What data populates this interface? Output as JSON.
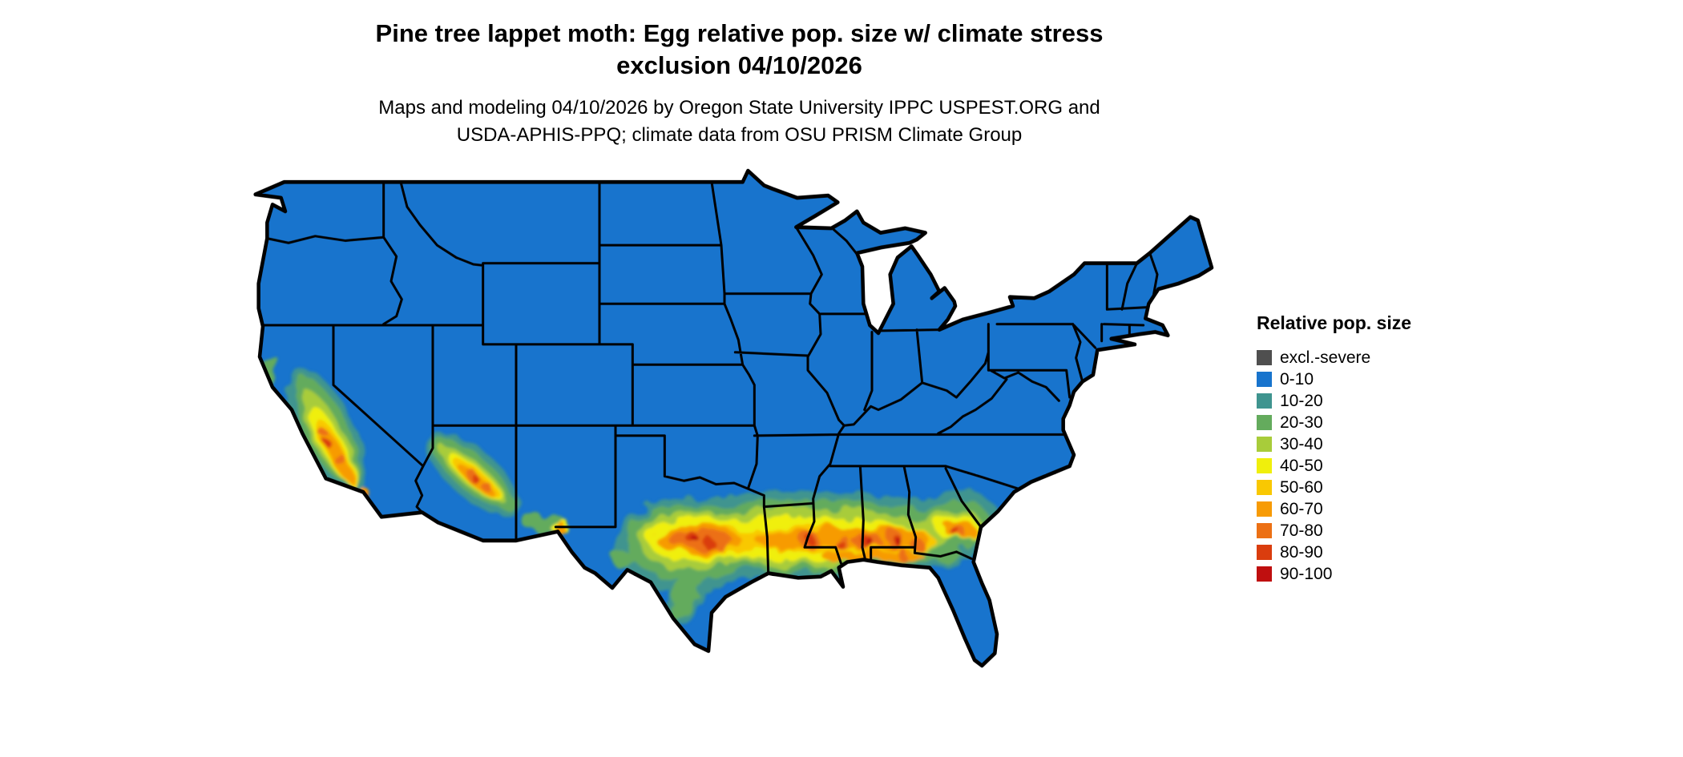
{
  "title": {
    "line1": "Pine tree lappet moth: Egg relative pop. size w/ climate stress",
    "line2": "exclusion 04/10/2026"
  },
  "subtitle": {
    "line1": "Maps and modeling 04/10/2026 by Oregon State University IPPC USPEST.ORG and",
    "line2": "USDA-APHIS-PPQ; climate data from OSU PRISM Climate Group"
  },
  "legend": {
    "title": "Relative pop. size",
    "items": [
      {
        "label": "excl.-severe",
        "color": "#4f4f4f"
      },
      {
        "label": "0-10",
        "color": "#1874cd"
      },
      {
        "label": "10-20",
        "color": "#3f948f"
      },
      {
        "label": "20-30",
        "color": "#64ab5d"
      },
      {
        "label": "30-40",
        "color": "#a8cc3a"
      },
      {
        "label": "40-50",
        "color": "#f0ef0c"
      },
      {
        "label": "50-60",
        "color": "#f9c802"
      },
      {
        "label": "60-70",
        "color": "#f79b05"
      },
      {
        "label": "70-80",
        "color": "#ec7014"
      },
      {
        "label": "80-90",
        "color": "#da3d0e"
      },
      {
        "label": "90-100",
        "color": "#bf0f0f"
      }
    ]
  },
  "map": {
    "region": "Contiguous United States",
    "border_color": "#000000",
    "background_color": "#ffffff"
  }
}
